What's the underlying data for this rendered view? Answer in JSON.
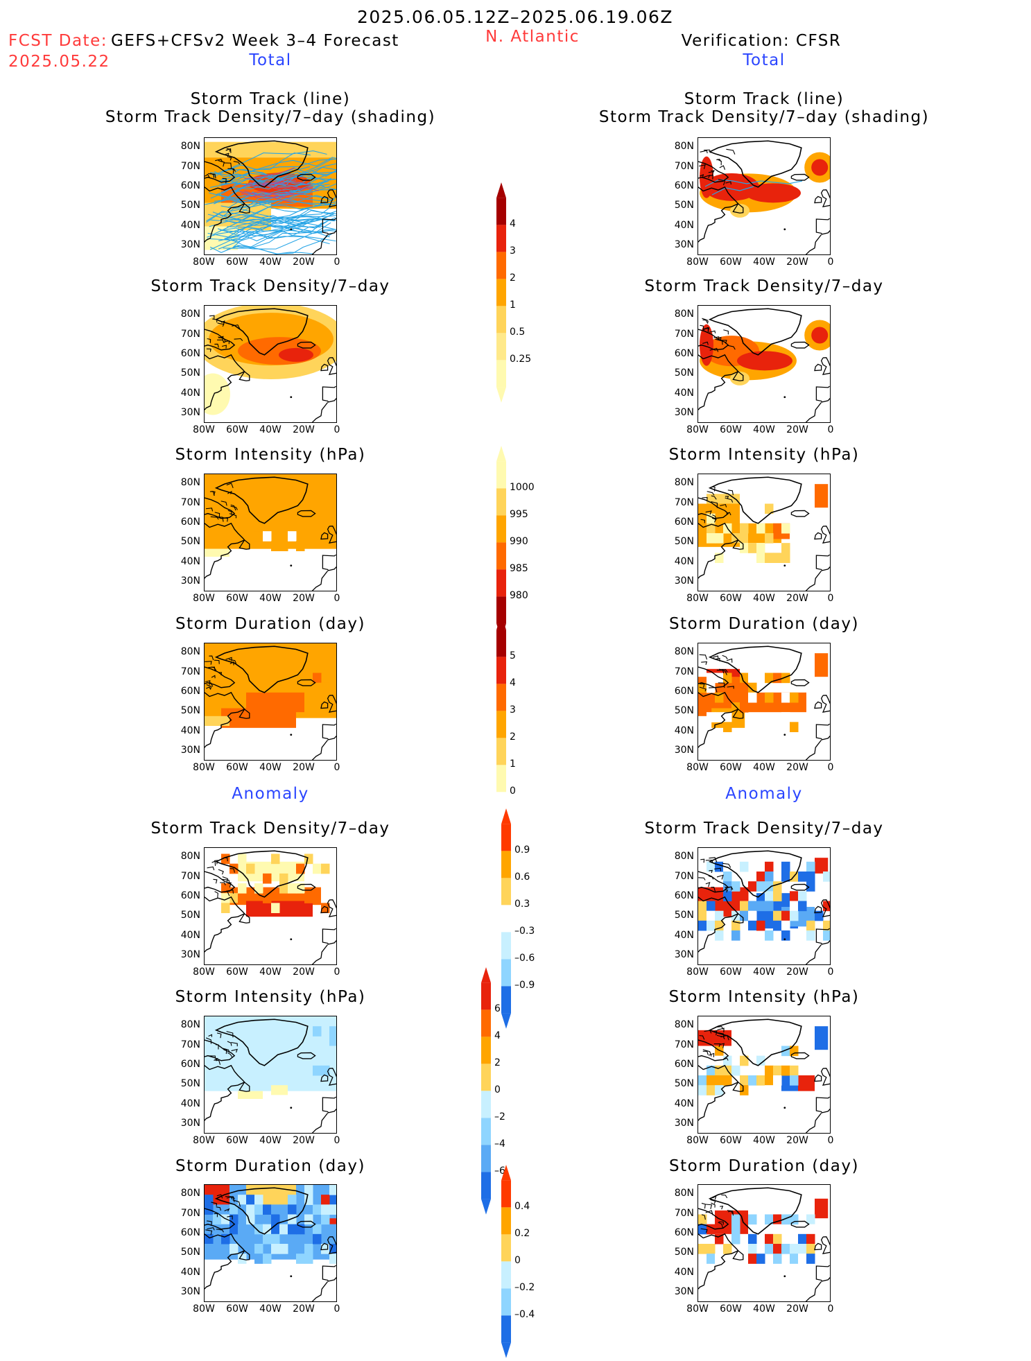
{
  "header": {
    "date_range": "2025.06.05.12Z–2025.06.19.06Z",
    "fcst_date_label": "FCST Date:",
    "fcst_date_value": "2025.05.22",
    "forecast_title": "GEFS+CFSv2 Week 3–4 Forecast",
    "region": "N. Atlantic",
    "verification_title": "Verification: CFSR"
  },
  "sections": {
    "total_left": "Total",
    "total_right": "Total",
    "anomaly_left": "Anomaly",
    "anomaly_right": "Anomaly"
  },
  "panel_titles": {
    "track_line": "Storm Track (line)",
    "track_shading": "Storm Track Density/7–day (shading)",
    "density": "Storm Track Density/7–day",
    "intensity": "Storm Intensity (hPa)",
    "duration": "Storm Duration (day)"
  },
  "axes": {
    "lat_ticks": [
      "80N",
      "70N",
      "60N",
      "50N",
      "40N",
      "30N"
    ],
    "lon_ticks": [
      "80W",
      "60W",
      "40W",
      "20W",
      "0"
    ]
  },
  "colorbars": {
    "density_total": [
      "4",
      "3",
      "2",
      "1",
      "0.5",
      "0.25"
    ],
    "intensity_total": [
      "1000",
      "995",
      "990",
      "985",
      "980"
    ],
    "duration_total": [
      "5",
      "4",
      "3",
      "2",
      "1",
      "0"
    ],
    "density_anom": [
      "0.9",
      "0.6",
      "0.3",
      "–0.3",
      "–0.6",
      "–0.9"
    ],
    "intensity_anom": [
      "6",
      "4",
      "2",
      "0",
      "–2",
      "–4",
      "–6"
    ],
    "duration_anom": [
      "0.4",
      "0.2",
      "0",
      "–0.2",
      "–0.4"
    ]
  },
  "colors": {
    "title_red": "#ff3a3a",
    "section_blue": "#2a45ff",
    "track_lines": "#28a5e6",
    "scale_warm": [
      "#fffab0",
      "#ffd45a",
      "#ffa500",
      "#ff6a00",
      "#e8230c",
      "#a50000"
    ],
    "scale_cool": [
      "#c8f0ff",
      "#8fd5ff",
      "#5aaaf5",
      "#1e6ee6"
    ]
  }
}
